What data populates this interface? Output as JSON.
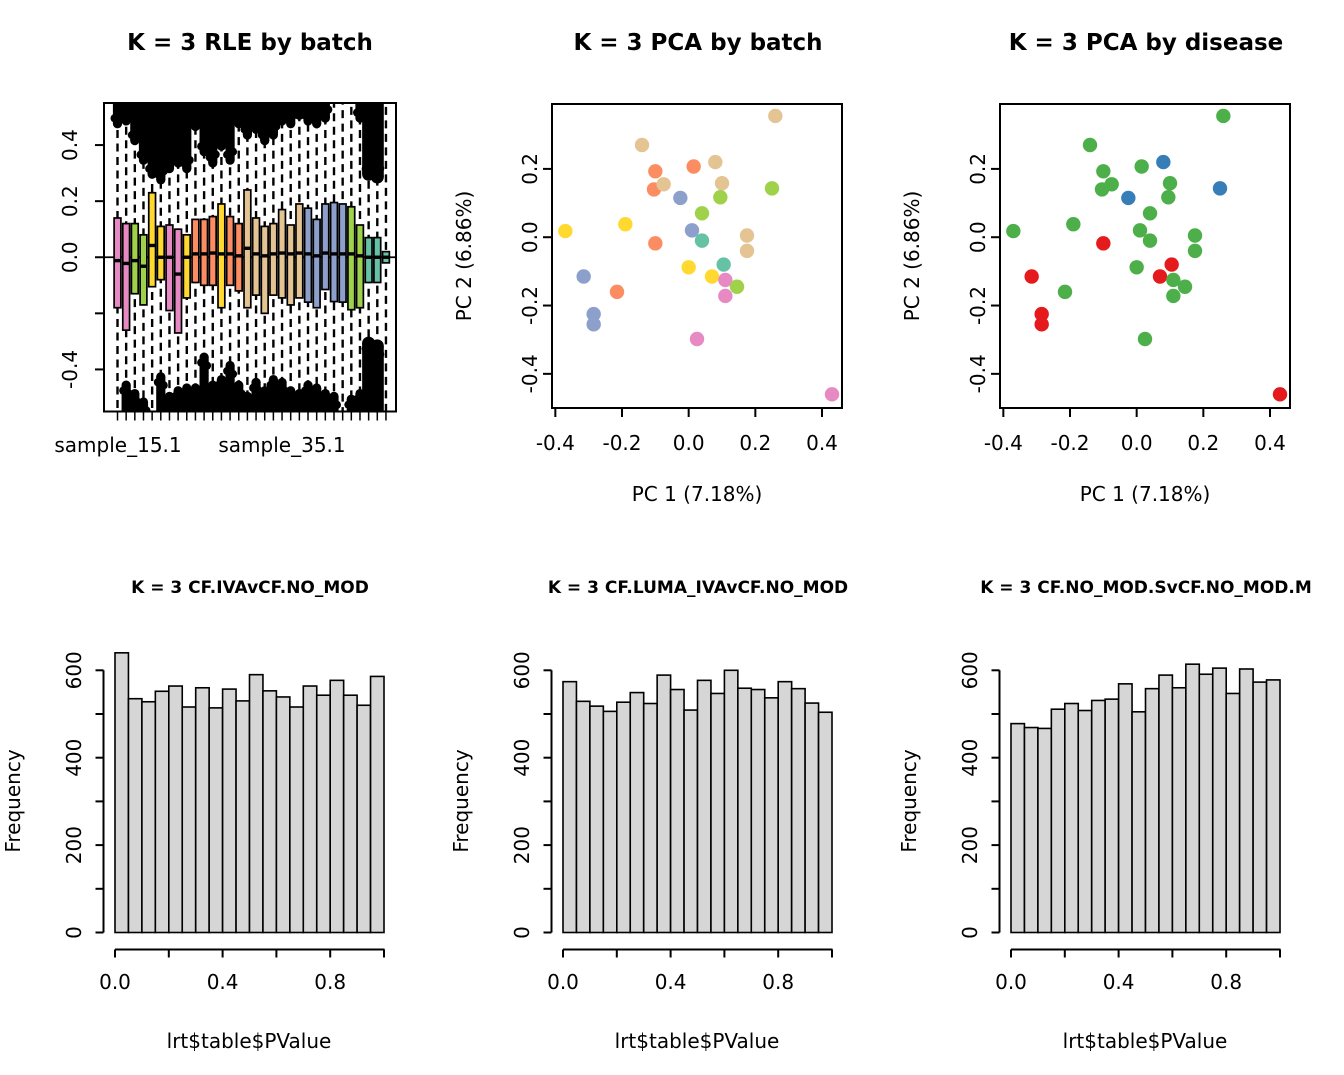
{
  "palette": {
    "set2": {
      "teal": "#66C2A5",
      "orange": "#FC8D62",
      "blue": "#8DA0CB",
      "pink": "#E78AC3",
      "green": "#9FD24A",
      "yellow": "#FFD92F",
      "tan": "#E5C494"
    },
    "set1": {
      "red": "#E41A1C",
      "blue": "#377EB8",
      "green": "#4DAF4A"
    },
    "hist_fill": "#d6d6d6",
    "axis_color": "#000000"
  },
  "chart_data": [
    {
      "type": "boxplot",
      "title": "K = 3 RLE by batch",
      "ylim": [
        -0.55,
        0.55
      ],
      "yticks": [
        {
          "v": 0.4,
          "l": "0.4"
        },
        {
          "v": 0.2,
          "l": "0.2"
        },
        {
          "v": 0.0,
          "l": "0.0"
        },
        {
          "v": -0.2,
          "l": ""
        },
        {
          "v": -0.4,
          "l": "-0.4"
        }
      ],
      "hline": 0,
      "x_sample_labels": [
        {
          "label": "sample_15.1",
          "box_index": 0
        },
        {
          "label": "sample_35.1",
          "box_index": 19
        }
      ],
      "palette_ref": "set2",
      "boxes": [
        {
          "color": "pink",
          "q1": -0.18,
          "q3": 0.14,
          "median": -0.012,
          "out_top": 0.46,
          "out_bottom": null
        },
        {
          "color": "pink",
          "q1": -0.26,
          "q3": 0.12,
          "median": -0.022,
          "out_top": 0.47,
          "out_bottom": -0.44
        },
        {
          "color": "green",
          "q1": -0.13,
          "q3": 0.12,
          "median": -0.012,
          "out_top": 0.4,
          "out_bottom": -0.47
        },
        {
          "color": "green",
          "q1": -0.17,
          "q3": 0.08,
          "median": -0.032,
          "out_top": 0.33,
          "out_bottom": -0.5
        },
        {
          "color": "yellow",
          "q1": -0.105,
          "q3": 0.23,
          "median": 0.042,
          "out_top": 0.28,
          "out_bottom": null
        },
        {
          "color": "yellow",
          "q1": -0.08,
          "q3": 0.11,
          "median": 0.0,
          "out_top": 0.26,
          "out_bottom": -0.41
        },
        {
          "color": "pink",
          "q1": -0.19,
          "q3": 0.115,
          "median": 0.0,
          "out_top": 0.3,
          "out_bottom": -0.48
        },
        {
          "color": "pink",
          "q1": -0.27,
          "q3": 0.1,
          "median": -0.06,
          "out_top": 0.32,
          "out_bottom": -0.46
        },
        {
          "color": "yellow",
          "q1": -0.145,
          "q3": 0.08,
          "median": 0.0,
          "out_top": 0.3,
          "out_bottom": -0.45
        },
        {
          "color": "orange",
          "q1": -0.09,
          "q3": 0.135,
          "median": 0.012,
          "out_top": 0.45,
          "out_bottom": -0.45
        },
        {
          "color": "orange",
          "q1": -0.1,
          "q3": 0.135,
          "median": 0.012,
          "out_top": 0.36,
          "out_bottom": -0.34
        },
        {
          "color": "orange",
          "q1": -0.1,
          "q3": 0.145,
          "median": 0.015,
          "out_top": 0.32,
          "out_bottom": -0.44
        },
        {
          "color": "yellow",
          "q1": -0.18,
          "q3": 0.19,
          "median": 0.012,
          "out_top": 0.38,
          "out_bottom": -0.42
        },
        {
          "color": "orange",
          "q1": -0.1,
          "q3": 0.145,
          "median": 0.012,
          "out_top": 0.33,
          "out_bottom": -0.37
        },
        {
          "color": "orange",
          "q1": -0.12,
          "q3": 0.12,
          "median": 0.005,
          "out_top": 0.46,
          "out_bottom": -0.44
        },
        {
          "color": "tan",
          "q1": -0.18,
          "q3": 0.24,
          "median": 0.032,
          "out_top": 0.42,
          "out_bottom": -0.48
        },
        {
          "color": "tan",
          "q1": -0.135,
          "q3": 0.14,
          "median": 0.012,
          "out_top": 0.44,
          "out_bottom": -0.43
        },
        {
          "color": "tan",
          "q1": -0.2,
          "q3": 0.11,
          "median": 0.005,
          "out_top": 0.4,
          "out_bottom": -0.46
        },
        {
          "color": "tan",
          "q1": -0.135,
          "q3": 0.12,
          "median": 0.012,
          "out_top": 0.42,
          "out_bottom": -0.42
        },
        {
          "color": "tan",
          "q1": -0.145,
          "q3": 0.17,
          "median": 0.015,
          "out_top": 0.47,
          "out_bottom": -0.43
        },
        {
          "color": "tan",
          "q1": -0.17,
          "q3": 0.115,
          "median": 0.012,
          "out_top": 0.46,
          "out_bottom": -0.46
        },
        {
          "color": "tan",
          "q1": -0.145,
          "q3": 0.19,
          "median": 0.015,
          "out_top": 0.49,
          "out_bottom": -0.47
        },
        {
          "color": "blue",
          "q1": -0.16,
          "q3": 0.175,
          "median": 0.012,
          "out_top": 0.47,
          "out_bottom": -0.44
        },
        {
          "color": "blue",
          "q1": -0.18,
          "q3": 0.135,
          "median": 0.005,
          "out_top": 0.46,
          "out_bottom": -0.45
        },
        {
          "color": "blue",
          "q1": -0.115,
          "q3": 0.19,
          "median": 0.015,
          "out_top": 0.48,
          "out_bottom": -0.47
        },
        {
          "color": "blue",
          "q1": -0.158,
          "q3": 0.195,
          "median": 0.012,
          "out_top": null,
          "out_bottom": -0.48
        },
        {
          "color": "blue",
          "q1": -0.16,
          "q3": 0.19,
          "median": 0.012,
          "out_top": null,
          "out_bottom": null
        },
        {
          "color": "green",
          "q1": -0.187,
          "q3": 0.18,
          "median": 0.012,
          "out_top": null,
          "out_bottom": -0.49
        },
        {
          "color": "green",
          "q1": -0.18,
          "q3": 0.115,
          "median": 0.005,
          "out_top": 0.48,
          "out_bottom": -0.47
        },
        {
          "color": "teal",
          "q1": -0.09,
          "q3": 0.07,
          "median": 0.0,
          "out_top": 0.28,
          "out_bottom": -0.29,
          "wide": true
        },
        {
          "color": "teal",
          "q1": -0.09,
          "q3": 0.07,
          "median": 0.0,
          "out_top": 0.27,
          "out_bottom": -0.3,
          "wide": true
        },
        {
          "color": "teal",
          "q1": -0.02,
          "q3": 0.02,
          "median": 0.0,
          "out_top": null,
          "out_bottom": null
        }
      ]
    },
    {
      "type": "scatter",
      "title": "K = 3 PCA by batch",
      "xlabel": "PC 1 (7.18%)",
      "ylabel": "PC 2 (6.86%)",
      "xlim": [
        -0.41,
        0.46
      ],
      "ylim": [
        -0.5,
        0.39
      ],
      "xticks": [
        {
          "v": -0.4,
          "l": "-0.4"
        },
        {
          "v": -0.2,
          "l": "-0.2"
        },
        {
          "v": 0.0,
          "l": "0.0"
        },
        {
          "v": 0.2,
          "l": "0.2"
        },
        {
          "v": 0.4,
          "l": "0.4"
        }
      ],
      "yticks": [
        {
          "v": 0.2,
          "l": "0.2"
        },
        {
          "v": 0.0,
          "l": "0.0"
        },
        {
          "v": -0.2,
          "l": "-0.2"
        },
        {
          "v": -0.4,
          "l": "-0.4"
        }
      ],
      "palette_ref": "set2",
      "points": [
        {
          "x": 0.26,
          "y": 0.355,
          "color": "tan"
        },
        {
          "x": -0.14,
          "y": 0.27,
          "color": "tan"
        },
        {
          "x": -0.1,
          "y": 0.193,
          "color": "orange"
        },
        {
          "x": 0.015,
          "y": 0.207,
          "color": "orange"
        },
        {
          "x": 0.08,
          "y": 0.22,
          "color": "tan"
        },
        {
          "x": -0.104,
          "y": 0.14,
          "color": "orange"
        },
        {
          "x": -0.075,
          "y": 0.155,
          "color": "tan"
        },
        {
          "x": 0.1,
          "y": 0.158,
          "color": "tan"
        },
        {
          "x": -0.025,
          "y": 0.115,
          "color": "blue"
        },
        {
          "x": 0.095,
          "y": 0.117,
          "color": "green"
        },
        {
          "x": 0.25,
          "y": 0.143,
          "color": "green"
        },
        {
          "x": 0.04,
          "y": 0.07,
          "color": "green"
        },
        {
          "x": -0.19,
          "y": 0.038,
          "color": "yellow"
        },
        {
          "x": -0.37,
          "y": 0.018,
          "color": "yellow"
        },
        {
          "x": 0.01,
          "y": 0.02,
          "color": "blue"
        },
        {
          "x": 0.04,
          "y": -0.01,
          "color": "teal"
        },
        {
          "x": 0.175,
          "y": 0.005,
          "color": "tan"
        },
        {
          "x": -0.1,
          "y": -0.018,
          "color": "orange"
        },
        {
          "x": 0.175,
          "y": -0.04,
          "color": "tan"
        },
        {
          "x": 0.105,
          "y": -0.08,
          "color": "teal"
        },
        {
          "x": 0.0,
          "y": -0.088,
          "color": "yellow"
        },
        {
          "x": 0.07,
          "y": -0.115,
          "color": "yellow"
        },
        {
          "x": 0.11,
          "y": -0.125,
          "color": "pink"
        },
        {
          "x": -0.315,
          "y": -0.115,
          "color": "blue"
        },
        {
          "x": 0.145,
          "y": -0.145,
          "color": "green"
        },
        {
          "x": -0.215,
          "y": -0.16,
          "color": "orange"
        },
        {
          "x": 0.11,
          "y": -0.172,
          "color": "pink"
        },
        {
          "x": -0.285,
          "y": -0.225,
          "color": "blue"
        },
        {
          "x": -0.285,
          "y": -0.255,
          "color": "blue"
        },
        {
          "x": 0.025,
          "y": -0.298,
          "color": "pink"
        },
        {
          "x": 0.43,
          "y": -0.46,
          "color": "pink"
        }
      ]
    },
    {
      "type": "scatter",
      "title": "K = 3 PCA by disease",
      "xlabel": "PC 1 (7.18%)",
      "ylabel": "PC 2 (6.86%)",
      "xlim": [
        -0.41,
        0.46
      ],
      "ylim": [
        -0.5,
        0.39
      ],
      "xticks": [
        {
          "v": -0.4,
          "l": "-0.4"
        },
        {
          "v": -0.2,
          "l": "-0.2"
        },
        {
          "v": 0.0,
          "l": "0.0"
        },
        {
          "v": 0.2,
          "l": "0.2"
        },
        {
          "v": 0.4,
          "l": "0.4"
        }
      ],
      "yticks": [
        {
          "v": 0.2,
          "l": "0.2"
        },
        {
          "v": 0.0,
          "l": "0.0"
        },
        {
          "v": -0.2,
          "l": "-0.2"
        },
        {
          "v": -0.4,
          "l": "-0.4"
        }
      ],
      "palette_ref": "set1",
      "points": [
        {
          "x": 0.26,
          "y": 0.355,
          "color": "green"
        },
        {
          "x": -0.14,
          "y": 0.27,
          "color": "green"
        },
        {
          "x": -0.1,
          "y": 0.193,
          "color": "green"
        },
        {
          "x": 0.015,
          "y": 0.207,
          "color": "green"
        },
        {
          "x": 0.08,
          "y": 0.22,
          "color": "blue"
        },
        {
          "x": -0.104,
          "y": 0.14,
          "color": "green"
        },
        {
          "x": -0.075,
          "y": 0.155,
          "color": "green"
        },
        {
          "x": 0.1,
          "y": 0.158,
          "color": "green"
        },
        {
          "x": -0.025,
          "y": 0.115,
          "color": "blue"
        },
        {
          "x": 0.095,
          "y": 0.117,
          "color": "green"
        },
        {
          "x": 0.25,
          "y": 0.143,
          "color": "blue"
        },
        {
          "x": 0.04,
          "y": 0.07,
          "color": "green"
        },
        {
          "x": -0.19,
          "y": 0.038,
          "color": "green"
        },
        {
          "x": -0.37,
          "y": 0.018,
          "color": "green"
        },
        {
          "x": 0.01,
          "y": 0.02,
          "color": "green"
        },
        {
          "x": 0.04,
          "y": -0.01,
          "color": "green"
        },
        {
          "x": 0.175,
          "y": 0.005,
          "color": "green"
        },
        {
          "x": -0.1,
          "y": -0.018,
          "color": "red"
        },
        {
          "x": 0.175,
          "y": -0.04,
          "color": "green"
        },
        {
          "x": 0.105,
          "y": -0.08,
          "color": "red"
        },
        {
          "x": 0.0,
          "y": -0.088,
          "color": "green"
        },
        {
          "x": 0.07,
          "y": -0.115,
          "color": "red"
        },
        {
          "x": 0.11,
          "y": -0.125,
          "color": "green"
        },
        {
          "x": -0.315,
          "y": -0.115,
          "color": "red"
        },
        {
          "x": 0.145,
          "y": -0.145,
          "color": "green"
        },
        {
          "x": -0.215,
          "y": -0.16,
          "color": "green"
        },
        {
          "x": 0.11,
          "y": -0.172,
          "color": "green"
        },
        {
          "x": -0.285,
          "y": -0.225,
          "color": "red"
        },
        {
          "x": -0.285,
          "y": -0.255,
          "color": "red"
        },
        {
          "x": 0.025,
          "y": -0.298,
          "color": "green"
        },
        {
          "x": 0.43,
          "y": -0.46,
          "color": "red"
        }
      ]
    },
    {
      "type": "histogram",
      "title": "K = 3 CF.IVAvCF.NO_MOD",
      "xlabel": "lrt$table$PValue",
      "ylabel": "Frequency",
      "bin_start": 0,
      "bin_width": 0.05,
      "xlim": [
        0,
        1
      ],
      "ylim": [
        0,
        650
      ],
      "xticks": [
        {
          "v": 0.0,
          "l": "0.0"
        },
        {
          "v": 0.2,
          "l": ""
        },
        {
          "v": 0.4,
          "l": "0.4"
        },
        {
          "v": 0.6,
          "l": ""
        },
        {
          "v": 0.8,
          "l": "0.8"
        },
        {
          "v": 1.0,
          "l": ""
        }
      ],
      "yticks": [
        {
          "v": 0,
          "l": "0"
        },
        {
          "v": 100,
          "l": ""
        },
        {
          "v": 200,
          "l": "200"
        },
        {
          "v": 300,
          "l": ""
        },
        {
          "v": 400,
          "l": "400"
        },
        {
          "v": 500,
          "l": ""
        },
        {
          "v": 600,
          "l": "600"
        }
      ],
      "counts": [
        640,
        535,
        528,
        552,
        564,
        516,
        560,
        514,
        557,
        530,
        590,
        553,
        539,
        516,
        564,
        543,
        577,
        543,
        520,
        586
      ]
    },
    {
      "type": "histogram",
      "title": "K = 3 CF.LUMA_IVAvCF.NO_MOD",
      "xlabel": "lrt$table$PValue",
      "ylabel": "Frequency",
      "bin_start": 0,
      "bin_width": 0.05,
      "xlim": [
        0,
        1
      ],
      "ylim": [
        0,
        650
      ],
      "xticks": [
        {
          "v": 0.0,
          "l": "0.0"
        },
        {
          "v": 0.2,
          "l": ""
        },
        {
          "v": 0.4,
          "l": "0.4"
        },
        {
          "v": 0.6,
          "l": ""
        },
        {
          "v": 0.8,
          "l": "0.8"
        },
        {
          "v": 1.0,
          "l": ""
        }
      ],
      "yticks": [
        {
          "v": 0,
          "l": "0"
        },
        {
          "v": 100,
          "l": ""
        },
        {
          "v": 200,
          "l": "200"
        },
        {
          "v": 300,
          "l": ""
        },
        {
          "v": 400,
          "l": "400"
        },
        {
          "v": 500,
          "l": ""
        },
        {
          "v": 600,
          "l": "600"
        }
      ],
      "counts": [
        574,
        529,
        518,
        506,
        527,
        549,
        524,
        589,
        556,
        509,
        577,
        547,
        600,
        559,
        556,
        537,
        574,
        558,
        525,
        504
      ]
    },
    {
      "type": "histogram",
      "title": "K = 3 CF.NO_MOD.SvCF.NO_MOD.M",
      "xlabel": "lrt$table$PValue",
      "ylabel": "Frequency",
      "bin_start": 0,
      "bin_width": 0.05,
      "xlim": [
        0,
        1
      ],
      "ylim": [
        0,
        650
      ],
      "xticks": [
        {
          "v": 0.0,
          "l": "0.0"
        },
        {
          "v": 0.2,
          "l": ""
        },
        {
          "v": 0.4,
          "l": "0.4"
        },
        {
          "v": 0.6,
          "l": ""
        },
        {
          "v": 0.8,
          "l": "0.8"
        },
        {
          "v": 1.0,
          "l": ""
        }
      ],
      "yticks": [
        {
          "v": 0,
          "l": "0"
        },
        {
          "v": 100,
          "l": ""
        },
        {
          "v": 200,
          "l": "200"
        },
        {
          "v": 300,
          "l": ""
        },
        {
          "v": 400,
          "l": "400"
        },
        {
          "v": 500,
          "l": ""
        },
        {
          "v": 600,
          "l": "600"
        }
      ],
      "counts": [
        478,
        469,
        467,
        511,
        524,
        508,
        531,
        534,
        569,
        505,
        558,
        589,
        560,
        614,
        591,
        605,
        547,
        603,
        573,
        578
      ]
    }
  ]
}
